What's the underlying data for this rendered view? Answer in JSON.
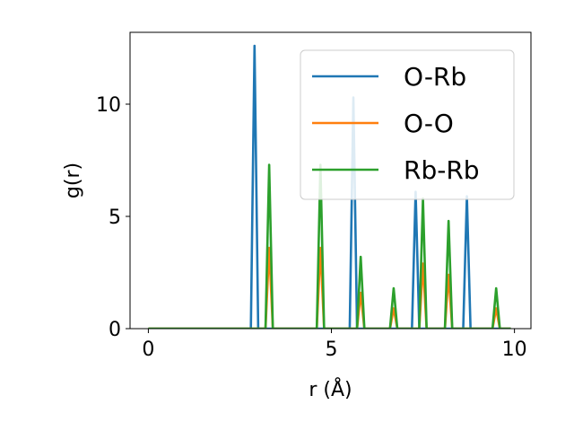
{
  "chart_data": {
    "type": "line",
    "xlabel": "r (Å)",
    "ylabel": "g(r)",
    "xlim": [
      -0.5,
      10.45
    ],
    "ylim": [
      0,
      13.2
    ],
    "xticks": [
      0,
      5,
      10
    ],
    "yticks": [
      0,
      5,
      10
    ],
    "grid": false,
    "legend_position": "top-right",
    "series": [
      {
        "name": "O-Rb",
        "color": "#1f77b4",
        "x": [
          0,
          2.8,
          2.9,
          3.0,
          5.5,
          5.6,
          5.7,
          7.2,
          7.3,
          7.4,
          8.6,
          8.7,
          8.8,
          9.9
        ],
        "y": [
          0,
          0,
          12.6,
          0,
          0,
          10.3,
          0,
          0,
          6.1,
          0,
          0,
          5.9,
          0,
          0
        ]
      },
      {
        "name": "O-O",
        "color": "#ff7f0e",
        "x": [
          0,
          3.2,
          3.3,
          3.4,
          4.6,
          4.7,
          4.8,
          5.7,
          5.8,
          5.9,
          6.6,
          6.7,
          6.8,
          7.4,
          7.5,
          7.6,
          8.1,
          8.2,
          8.3,
          9.4,
          9.5,
          9.6,
          9.9
        ],
        "y": [
          0,
          0,
          3.6,
          0,
          0,
          3.6,
          0,
          0,
          1.6,
          0,
          0,
          0.9,
          0,
          0,
          2.9,
          0,
          0,
          2.4,
          0,
          0,
          0.9,
          0,
          0
        ]
      },
      {
        "name": "Rb-Rb",
        "color": "#2ca02c",
        "x": [
          0,
          3.2,
          3.3,
          3.4,
          4.6,
          4.7,
          4.8,
          5.7,
          5.8,
          5.9,
          6.6,
          6.7,
          6.8,
          7.4,
          7.5,
          7.6,
          8.1,
          8.2,
          8.3,
          9.4,
          9.5,
          9.6,
          9.9
        ],
        "y": [
          0,
          0,
          7.3,
          0,
          0,
          7.3,
          0,
          0,
          3.2,
          0,
          0,
          1.8,
          0,
          0,
          5.8,
          0,
          0,
          4.8,
          0,
          0,
          1.8,
          0,
          0
        ]
      }
    ]
  }
}
